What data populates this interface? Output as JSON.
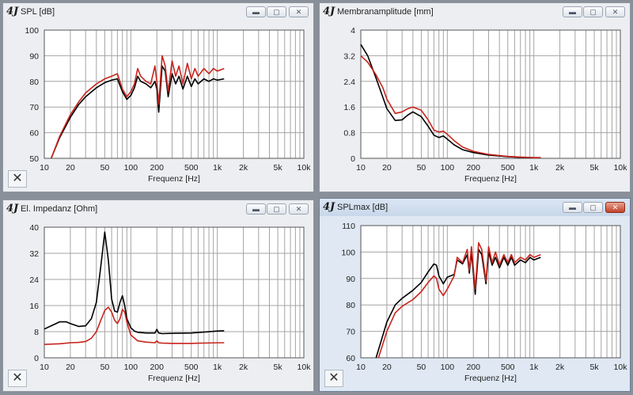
{
  "app_logo": "4J",
  "window_controls": {
    "minimize": "▬",
    "maximize": "▢",
    "close": "✕"
  },
  "corner_button_label": "✕",
  "xaxis": {
    "label": "Frequenz [Hz]",
    "range": [
      10,
      10000
    ],
    "log": true,
    "ticks": [
      {
        "v": 10,
        "t": "10"
      },
      {
        "v": 20,
        "t": "20"
      },
      {
        "v": 50,
        "t": "50"
      },
      {
        "v": 100,
        "t": "100"
      },
      {
        "v": 200,
        "t": "200"
      },
      {
        "v": 500,
        "t": "500"
      },
      {
        "v": 1000,
        "t": "1k"
      },
      {
        "v": 2000,
        "t": "2k"
      },
      {
        "v": 5000,
        "t": "5k"
      },
      {
        "v": 10000,
        "t": "10k"
      }
    ]
  },
  "colors": {
    "series_a": "#000000",
    "series_b": "#c8241c",
    "grid": "#a4a4a4",
    "plot_bg": "#ffffff"
  },
  "chart_data": [
    {
      "type": "line",
      "title": "SPL [dB]",
      "xlabel": "Frequenz [Hz]",
      "ylim": [
        50,
        100
      ],
      "yticks": [
        50,
        60,
        70,
        80,
        90,
        100
      ],
      "grid": true,
      "series": [
        {
          "color": "#000000",
          "x": [
            12,
            15,
            20,
            25,
            30,
            40,
            50,
            60,
            70,
            80,
            90,
            100,
            110,
            120,
            130,
            150,
            170,
            190,
            200,
            210,
            230,
            250,
            270,
            300,
            330,
            360,
            400,
            450,
            500,
            550,
            600,
            700,
            800,
            900,
            1000,
            1200
          ],
          "y": [
            50,
            58,
            66,
            71,
            74,
            77.5,
            79.5,
            80.5,
            81,
            76,
            73,
            74.5,
            77.5,
            82,
            80,
            79,
            77.5,
            80,
            77,
            68,
            86,
            84,
            74,
            83,
            79,
            82,
            77,
            82,
            78,
            81,
            79,
            81,
            80,
            81,
            80.5,
            81
          ]
        },
        {
          "color": "#c8241c",
          "x": [
            12,
            15,
            20,
            25,
            30,
            40,
            50,
            60,
            70,
            80,
            90,
            100,
            110,
            120,
            130,
            150,
            170,
            190,
            200,
            210,
            230,
            250,
            270,
            300,
            330,
            360,
            400,
            450,
            500,
            550,
            600,
            700,
            800,
            900,
            1000,
            1200
          ],
          "y": [
            50,
            58.5,
            67,
            72,
            75.5,
            79,
            81,
            82,
            83,
            77,
            74,
            76,
            79,
            85,
            82,
            80,
            79,
            86,
            80,
            71,
            90,
            86,
            76,
            88,
            82,
            86,
            79,
            87,
            81,
            85,
            82,
            85,
            83,
            85,
            84,
            85
          ]
        }
      ]
    },
    {
      "type": "line",
      "title": "Membranamplitude [mm]",
      "xlabel": "Frequenz [Hz]",
      "ylim": [
        0,
        4
      ],
      "yticks": [
        0,
        0.8,
        1.6,
        2.4,
        3.2,
        4
      ],
      "grid": true,
      "series": [
        {
          "color": "#000000",
          "x": [
            10,
            12,
            15,
            18,
            20,
            25,
            30,
            35,
            40,
            50,
            60,
            70,
            80,
            90,
            100,
            120,
            150,
            200,
            300,
            500,
            700,
            1000,
            1200
          ],
          "y": [
            3.55,
            3.2,
            2.5,
            1.9,
            1.55,
            1.18,
            1.2,
            1.35,
            1.45,
            1.3,
            1.0,
            0.72,
            0.65,
            0.7,
            0.6,
            0.42,
            0.27,
            0.18,
            0.1,
            0.05,
            0.03,
            0.02,
            0.02
          ]
        },
        {
          "color": "#c8241c",
          "x": [
            10,
            12,
            15,
            18,
            20,
            25,
            30,
            35,
            40,
            50,
            60,
            70,
            80,
            90,
            100,
            120,
            150,
            200,
            300,
            500,
            700,
            1000,
            1200
          ],
          "y": [
            3.2,
            3.0,
            2.6,
            2.2,
            1.85,
            1.4,
            1.45,
            1.55,
            1.6,
            1.5,
            1.2,
            0.88,
            0.82,
            0.85,
            0.75,
            0.55,
            0.35,
            0.22,
            0.12,
            0.06,
            0.04,
            0.02,
            0.02
          ]
        }
      ]
    },
    {
      "type": "line",
      "title": "El. Impedanz [Ohm]",
      "xlabel": "Frequenz [Hz]",
      "ylim": [
        0,
        40
      ],
      "yticks": [
        0,
        8,
        16,
        24,
        32,
        40
      ],
      "grid": true,
      "series": [
        {
          "color": "#000000",
          "x": [
            10,
            12,
            15,
            18,
            20,
            25,
            30,
            35,
            40,
            45,
            50,
            55,
            60,
            65,
            70,
            75,
            80,
            85,
            90,
            100,
            110,
            120,
            150,
            190,
            200,
            210,
            230,
            300,
            500,
            1000,
            1200
          ],
          "y": [
            8.8,
            9.8,
            11,
            11,
            10.5,
            9.6,
            9.8,
            12,
            17,
            28,
            38.5,
            30,
            18,
            14.3,
            14,
            17,
            19,
            16,
            12,
            9.2,
            8.2,
            7.8,
            7.6,
            7.6,
            8.7,
            7.6,
            7.4,
            7.5,
            7.6,
            8.2,
            8.3
          ]
        },
        {
          "color": "#c8241c",
          "x": [
            10,
            15,
            20,
            25,
            30,
            35,
            40,
            45,
            50,
            55,
            60,
            65,
            70,
            75,
            80,
            85,
            90,
            100,
            120,
            150,
            190,
            200,
            210,
            230,
            300,
            500,
            1000,
            1200
          ],
          "y": [
            4.1,
            4.3,
            4.6,
            4.7,
            5.0,
            6.0,
            8.0,
            11.5,
            14.5,
            15.5,
            14,
            11.5,
            10.5,
            12,
            14.8,
            14,
            11,
            7,
            5.2,
            4.8,
            4.6,
            5.2,
            4.6,
            4.5,
            4.4,
            4.4,
            4.6,
            4.6
          ]
        }
      ]
    },
    {
      "type": "line",
      "title": "SPLmax [dB]",
      "xlabel": "Frequenz [Hz]",
      "ylim": [
        60,
        110
      ],
      "yticks": [
        60,
        70,
        80,
        90,
        100,
        110
      ],
      "grid": true,
      "series": [
        {
          "color": "#000000",
          "x": [
            15,
            20,
            25,
            30,
            40,
            50,
            60,
            70,
            75,
            80,
            90,
            100,
            120,
            130,
            150,
            170,
            180,
            190,
            210,
            230,
            250,
            280,
            300,
            330,
            360,
            400,
            450,
            500,
            550,
            600,
            700,
            800,
            900,
            1000,
            1200
          ],
          "y": [
            60,
            73.5,
            80,
            82.5,
            85.5,
            88.5,
            92.5,
            95.5,
            95,
            91,
            88,
            90.5,
            91.5,
            97,
            95.5,
            99,
            92,
            100,
            84,
            101,
            99,
            88,
            100,
            95,
            98,
            94,
            98,
            95,
            98,
            95,
            97,
            96,
            98,
            97,
            98
          ]
        },
        {
          "color": "#c8241c",
          "x": [
            16,
            20,
            25,
            30,
            40,
            50,
            60,
            70,
            75,
            80,
            90,
            100,
            120,
            130,
            150,
            170,
            180,
            190,
            210,
            230,
            250,
            280,
            300,
            330,
            360,
            400,
            450,
            500,
            550,
            600,
            700,
            800,
            900,
            1000,
            1200
          ],
          "y": [
            60,
            70,
            77,
            79.5,
            82,
            85,
            88.5,
            91,
            90,
            86,
            83.5,
            86,
            91,
            98,
            96,
            101,
            93,
            102,
            86,
            103.5,
            101,
            89,
            102,
            96,
            100,
            95,
            99,
            96,
            99,
            96,
            98,
            97,
            99,
            98,
            99
          ]
        }
      ]
    }
  ]
}
